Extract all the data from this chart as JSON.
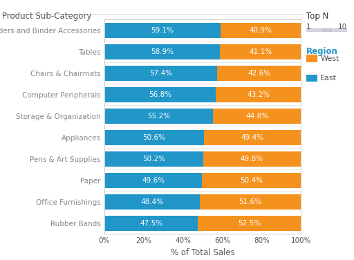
{
  "categories": [
    "Binders and Binder Accessories",
    "Tables",
    "Chairs & Chairmats",
    "Computer Peripherals",
    "Storage & Organization",
    "Appliances",
    "Pens & Art Supplies",
    "Paper",
    "Office Furnishings",
    "Rubber Bands"
  ],
  "east_values": [
    59.1,
    58.9,
    57.4,
    56.8,
    55.2,
    50.6,
    50.2,
    49.6,
    48.4,
    47.5
  ],
  "west_values": [
    40.9,
    41.1,
    42.6,
    43.2,
    44.8,
    49.4,
    49.8,
    50.4,
    51.6,
    52.5
  ],
  "east_color": "#2196C9",
  "west_color": "#F5921E",
  "background_color": "#ffffff",
  "bar_height": 0.72,
  "title_text": "Product Sub-Category",
  "xlabel": "% of Total Sales",
  "legend_title": "Region",
  "legend_labels": [
    "West",
    "East"
  ],
  "legend_colors": [
    "#F5921E",
    "#2196C9"
  ],
  "top_n_title": "Top N",
  "top_n_min": "1",
  "top_n_max": "10",
  "label_fontsize": 7.5,
  "axis_label_fontsize": 8.5,
  "category_fontsize": 7.5,
  "tick_fontsize": 7.5
}
